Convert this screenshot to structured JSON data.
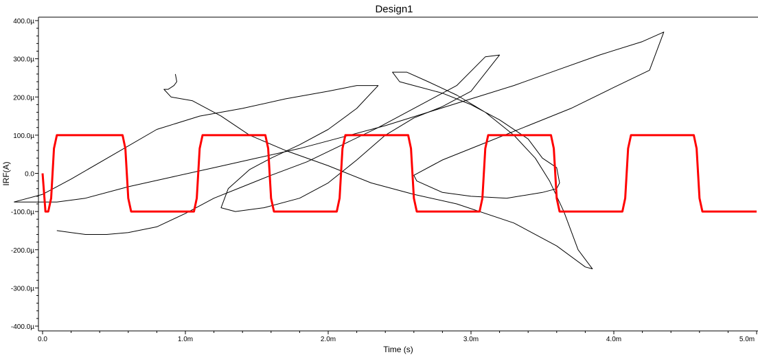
{
  "chart_data": {
    "type": "line",
    "title": "Design1",
    "xlabel": "Time (s)",
    "ylabel": "IRF(A)",
    "x_unit_scale": 0.001,
    "y_unit_scale": 1e-06,
    "xlim": [
      0,
      5.0
    ],
    "ylim": [
      -400,
      400
    ],
    "x_ticks": [
      0.0,
      1.0,
      2.0,
      3.0,
      4.0,
      5.0
    ],
    "x_tick_labels": [
      "0.0",
      "1.0m",
      "2.0m",
      "3.0m",
      "4.0m",
      "5.0m"
    ],
    "y_ticks": [
      400,
      300,
      200,
      100,
      0,
      -100,
      -200,
      -300,
      -400
    ],
    "y_tick_labels": [
      "400.0µ",
      "300.0µ",
      "200.0µ",
      "100.0µ",
      "0.0",
      "-100.0µ",
      "-200.0µ",
      "-300.0µ",
      "-400.0µ"
    ],
    "grid": false,
    "series": [
      {
        "color": "#ff0000",
        "x": [
          0.0,
          0.02,
          0.04,
          0.06,
          0.08,
          0.1,
          0.12,
          0.14,
          0.56,
          0.58,
          0.6,
          0.62,
          0.64,
          1.06,
          1.08,
          1.1,
          1.12,
          1.14,
          1.56,
          1.58,
          1.6,
          1.62,
          1.64,
          2.06,
          2.08,
          2.1,
          2.12,
          2.14,
          2.56,
          2.58,
          2.6,
          2.62,
          2.64,
          3.06,
          3.08,
          3.1,
          3.12,
          3.14,
          3.56,
          3.58,
          3.6,
          3.62,
          3.64,
          4.06,
          4.08,
          4.1,
          4.12,
          4.14,
          4.56,
          4.58,
          4.6,
          4.62,
          4.64,
          5.0
        ],
        "y": [
          0,
          -100,
          -100,
          -65,
          65,
          100,
          100,
          100,
          100,
          65,
          -65,
          -100,
          -100,
          -100,
          -65,
          65,
          100,
          100,
          100,
          65,
          -65,
          -100,
          -100,
          -100,
          -65,
          65,
          100,
          100,
          100,
          65,
          -65,
          -100,
          -100,
          -100,
          -65,
          65,
          100,
          100,
          100,
          65,
          -65,
          -100,
          -100,
          -100,
          -65,
          65,
          100,
          100,
          100,
          65,
          -65,
          -100,
          -100,
          -100
        ]
      },
      {
        "color": "#000000",
        "x": [
          -0.2,
          -0.05,
          0.1,
          0.3,
          0.6,
          0.9,
          1.2,
          1.5,
          1.8,
          2.1,
          2.4,
          2.7,
          3.0,
          3.3,
          3.6,
          3.9,
          4.2,
          4.35,
          4.25,
          4.0,
          3.7,
          3.4,
          3.1,
          2.8,
          2.6,
          2.62,
          2.8,
          3.0,
          3.25,
          3.5,
          3.6,
          3.62,
          3.6,
          3.5,
          3.4,
          3.2,
          3.0,
          2.8,
          2.6,
          2.5,
          2.45,
          2.55,
          2.7,
          2.9,
          3.1,
          3.3,
          3.45,
          3.55,
          3.65,
          3.75,
          3.85,
          3.8,
          3.6,
          3.3,
          2.9,
          2.6,
          2.3,
          2.0,
          1.7,
          1.45,
          1.25,
          1.05,
          0.9,
          0.85,
          0.88,
          0.92,
          0.94,
          0.93
        ],
        "y": [
          -75,
          -75,
          -75,
          -65,
          -35,
          -10,
          15,
          40,
          65,
          95,
          125,
          160,
          195,
          230,
          270,
          310,
          345,
          370,
          270,
          225,
          170,
          125,
          80,
          35,
          -5,
          -20,
          -50,
          -60,
          -65,
          -50,
          -40,
          -25,
          15,
          40,
          90,
          140,
          180,
          210,
          230,
          240,
          265,
          265,
          240,
          205,
          160,
          100,
          40,
          -20,
          -100,
          -200,
          -250,
          -245,
          -190,
          -130,
          -80,
          -55,
          -25,
          20,
          60,
          100,
          150,
          190,
          200,
          220,
          220,
          230,
          240,
          260
        ]
      },
      {
        "color": "#000000",
        "x": [
          -0.2,
          0.0,
          0.2,
          0.5,
          0.8,
          1.1,
          1.4,
          1.7,
          2.0,
          2.2,
          2.35,
          2.2,
          2.0,
          1.8,
          1.6,
          1.45,
          1.3,
          1.25,
          1.35,
          1.55,
          1.8,
          2.0,
          2.2,
          2.4,
          2.6,
          2.8,
          3.0,
          3.2,
          3.1,
          2.9,
          2.6,
          2.35,
          2.1,
          1.85,
          1.6,
          1.4,
          1.2,
          1.0,
          0.8,
          0.6,
          0.45,
          0.3,
          0.2,
          0.1
        ],
        "y": [
          -75,
          -55,
          -15,
          50,
          115,
          150,
          170,
          195,
          215,
          230,
          230,
          170,
          115,
          75,
          40,
          10,
          -40,
          -90,
          -100,
          -90,
          -65,
          -25,
          35,
          100,
          145,
          175,
          215,
          310,
          305,
          230,
          170,
          120,
          75,
          30,
          -5,
          -35,
          -65,
          -105,
          -140,
          -155,
          -160,
          -160,
          -155,
          -150
        ]
      }
    ]
  }
}
